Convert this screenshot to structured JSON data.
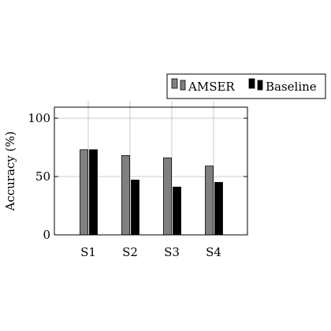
{
  "chart_data": {
    "type": "bar",
    "categories": [
      "S1",
      "S2",
      "S3",
      "S4"
    ],
    "series": [
      {
        "name": "AMSER",
        "values": [
          73,
          68,
          66,
          59
        ],
        "color": "#808080"
      },
      {
        "name": "Baseline",
        "values": [
          73,
          47,
          41,
          45
        ],
        "color": "#000000"
      }
    ],
    "title": "",
    "xlabel": "",
    "ylabel": "Accuracy (%)",
    "ylim": [
      0,
      110
    ],
    "yticks": [
      0,
      50,
      100
    ],
    "grid": true,
    "legend_position": "top-right, outside plot"
  }
}
